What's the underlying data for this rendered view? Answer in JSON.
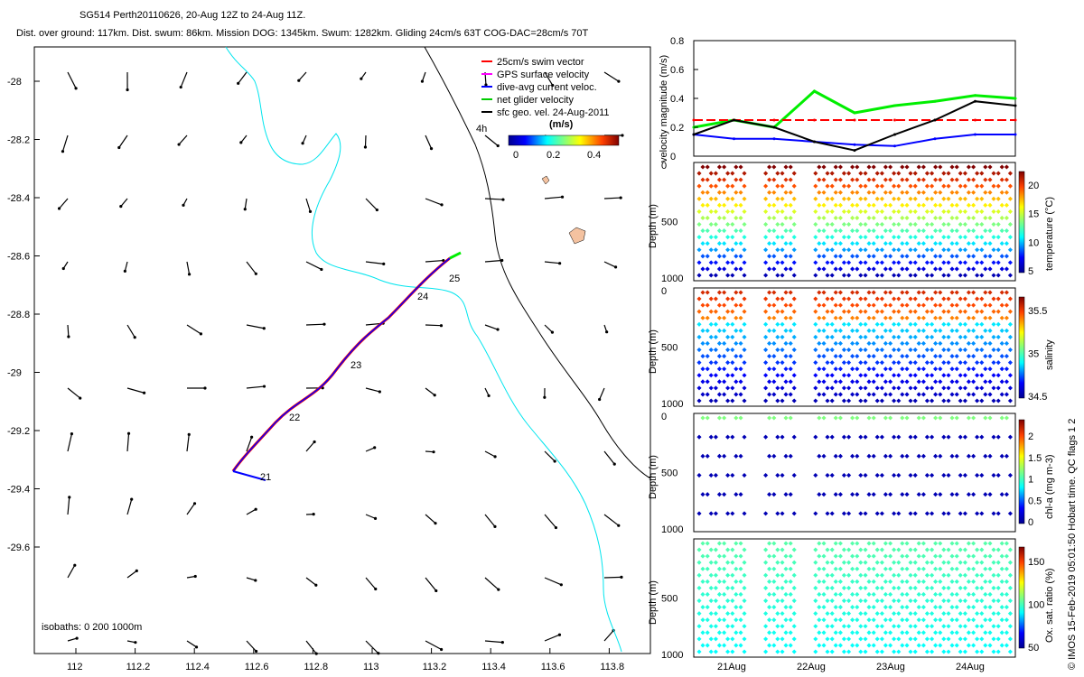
{
  "header": {
    "title_line1": "SG514 Perth20110626, 20-Aug 12Z to 24-Aug 11Z.",
    "title_line2": "Dist. over ground: 117km. Dist. swum: 86km. Mission DOG: 1345km. Swum: 1282km. Gliding 24cm/s 63T COG-DAC=28cm/s 70T"
  },
  "legend": {
    "items": [
      {
        "label": "25cm/s swim vector",
        "color": "#ff0000"
      },
      {
        "label": "GPS surface velocity",
        "color": "#ff00ff"
      },
      {
        "label": "dive-avg current veloc.",
        "color": "#0000ff"
      },
      {
        "label": "net glider velocity",
        "color": "#00cc00"
      },
      {
        "label": "sfc geo. vel. 24-Aug-2011",
        "color": "#000000"
      }
    ],
    "units": "(m/s)",
    "colorbar_label": "4h",
    "colorbar_ticks": [
      "0",
      "0.2",
      "0.4"
    ]
  },
  "map": {
    "lat_ticks": [
      "-28",
      "-28.2",
      "-28.4",
      "-28.6",
      "-28.8",
      "-29",
      "-29.2",
      "-29.4",
      "-29.6"
    ],
    "lon_ticks": [
      "112",
      "112.2",
      "112.4",
      "112.6",
      "112.8",
      "113",
      "113.2",
      "113.4",
      "113.6",
      "113.8"
    ],
    "day_labels": [
      "21",
      "22",
      "23",
      "24",
      "25"
    ],
    "isobaths": "isobaths: 0   200  1000m"
  },
  "right_panels": {
    "velocity": {
      "ylabel": "velocity magnitude (m/s)",
      "yticks": [
        "0",
        "0.2",
        "0.4",
        "0.6",
        "0.8"
      ]
    },
    "temperature": {
      "ylabel": "Depth (m)",
      "cbar_label": "temperature (°C)",
      "cbar_ticks": [
        "20",
        "15",
        "10",
        "5"
      ],
      "yticks": [
        "0",
        "500",
        "1000"
      ]
    },
    "salinity": {
      "ylabel": "Depth (m)",
      "cbar_label": "salinity",
      "cbar_ticks": [
        "35.5",
        "35",
        "34.5"
      ],
      "yticks": [
        "0",
        "500",
        "1000"
      ]
    },
    "chla": {
      "ylabel": "Depth (m)",
      "cbar_label": "chl-a (mg m-3)",
      "cbar_ticks": [
        "2",
        "1.5",
        "1",
        "0.5",
        "0"
      ],
      "yticks": [
        "0",
        "500",
        "1000"
      ]
    },
    "oxygen": {
      "ylabel": "Depth (m)",
      "cbar_label": "Ox. sat. ratio (%)",
      "cbar_ticks": [
        "150",
        "100",
        "50"
      ],
      "yticks": [
        "500",
        "1000"
      ]
    },
    "x_dates": [
      "21Aug",
      "22Aug",
      "23Aug",
      "24Aug"
    ],
    "side_note": "© IMOS 15-Feb-2019 05:01:50 Hobart time. QC flags 1  2"
  },
  "chart_data": {
    "type": "line",
    "title": "SG514 Perth20110626, 20-Aug 12Z to 24-Aug 11Z.",
    "x": [
      "20.5",
      "21",
      "21.5",
      "22",
      "22.5",
      "23",
      "23.5",
      "24",
      "24.5"
    ],
    "series": [
      {
        "name": "net glider velocity",
        "values": [
          0.2,
          0.25,
          0.2,
          0.45,
          0.3,
          0.35,
          0.38,
          0.42,
          0.4
        ]
      },
      {
        "name": "dive-avg current veloc.",
        "values": [
          0.15,
          0.12,
          0.12,
          0.1,
          0.08,
          0.07,
          0.12,
          0.15,
          0.15
        ]
      },
      {
        "name": "25cm/s swim vector",
        "values": [
          0.25,
          0.25,
          0.25,
          0.25,
          0.25,
          0.25,
          0.25,
          0.25,
          0.25
        ]
      },
      {
        "name": "sfc geo. vel. 24-Aug-2011",
        "values": [
          0.15,
          0.25,
          0.2,
          0.1,
          0.04,
          0.15,
          0.25,
          0.38,
          0.35
        ]
      }
    ],
    "ylabel": "velocity magnitude (m/s)",
    "ylim": [
      0,
      0.8
    ]
  }
}
